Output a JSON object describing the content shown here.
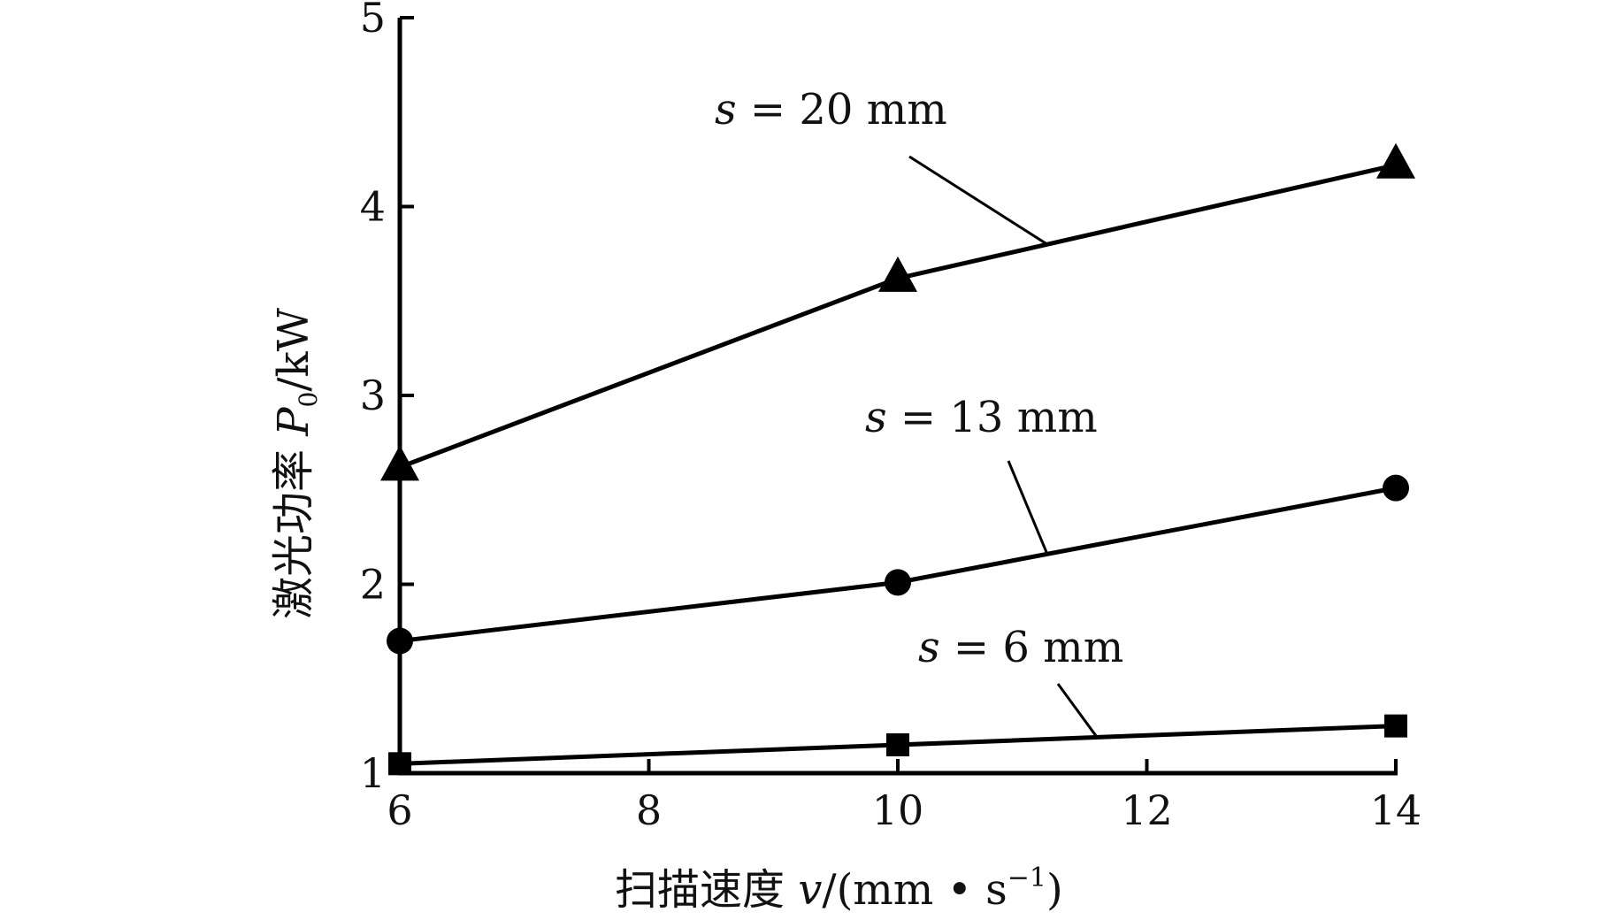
{
  "chart_data": {
    "type": "line",
    "title": "",
    "xlabel": {
      "prefix": "扫描速度 ",
      "var": "v",
      "unit_open": "/(mm • s",
      "unit_sup": "−1",
      "unit_close": ")"
    },
    "ylabel": {
      "prefix": "激光功率 ",
      "var": "P",
      "sub": "0",
      "unit": "/kW"
    },
    "xlim": [
      6,
      14
    ],
    "ylim": [
      1,
      5
    ],
    "x_ticks": [
      6,
      8,
      10,
      12,
      14
    ],
    "x_tick_labels": [
      "6",
      "8",
      "10",
      "12",
      "14"
    ],
    "y_ticks": [
      1,
      2,
      3,
      4,
      5
    ],
    "y_tick_labels": [
      "1",
      "2",
      "3",
      "4",
      "5"
    ],
    "grid": false,
    "x": [
      6,
      10,
      14
    ],
    "series": [
      {
        "marker": "triangle",
        "values": [
          2.62,
          3.62,
          4.22
        ],
        "label": {
          "var": "s",
          "eq": " = 20 mm"
        }
      },
      {
        "marker": "circle",
        "values": [
          1.7,
          2.01,
          2.51
        ],
        "label": {
          "var": "s",
          "eq": " = 13 mm"
        }
      },
      {
        "marker": "square",
        "values": [
          1.05,
          1.15,
          1.25
        ],
        "label": {
          "var": "s",
          "eq": " = 6 mm"
        }
      }
    ],
    "line_color": "#000000"
  }
}
